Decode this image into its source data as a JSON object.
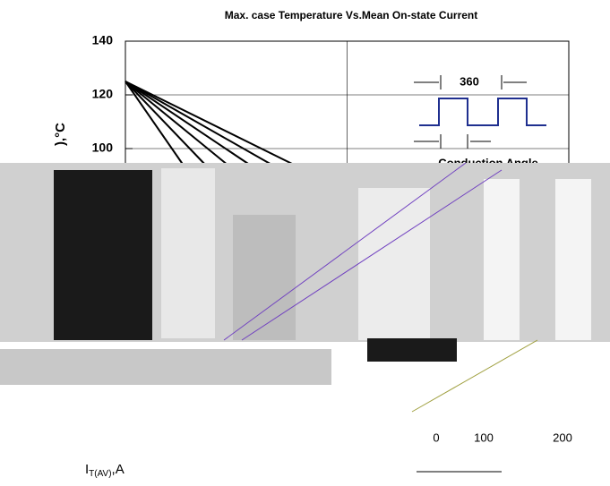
{
  "chart_data": {
    "type": "line",
    "title": "Max. case Temperature Vs.Mean On-state Current",
    "y_label": "),°C",
    "x_label": {
      "main": "I",
      "sub": "T(AV)",
      "unit": ",A"
    },
    "inset": {
      "angle": "360",
      "caption": "Conduction Angle"
    },
    "other_ticks": [
      "0",
      "100",
      "200"
    ],
    "xlim": [
      0,
      100
    ],
    "ylim": [
      60,
      140
    ],
    "yticks": [
      140,
      120,
      100
    ],
    "grid": true,
    "series": [
      {
        "color": "#000000",
        "x": [
          0,
          13
        ],
        "values": [
          125,
          94
        ]
      },
      {
        "color": "#000000",
        "x": [
          0,
          18
        ],
        "values": [
          125,
          94
        ]
      },
      {
        "color": "#000000",
        "x": [
          0,
          23
        ],
        "values": [
          125,
          94
        ]
      },
      {
        "color": "#000000",
        "x": [
          0,
          28
        ],
        "values": [
          125,
          94
        ]
      },
      {
        "color": "#000000",
        "x": [
          0,
          33
        ],
        "values": [
          125,
          94
        ]
      },
      {
        "color": "#000000",
        "x": [
          0,
          38
        ],
        "values": [
          125,
          94
        ]
      }
    ]
  }
}
